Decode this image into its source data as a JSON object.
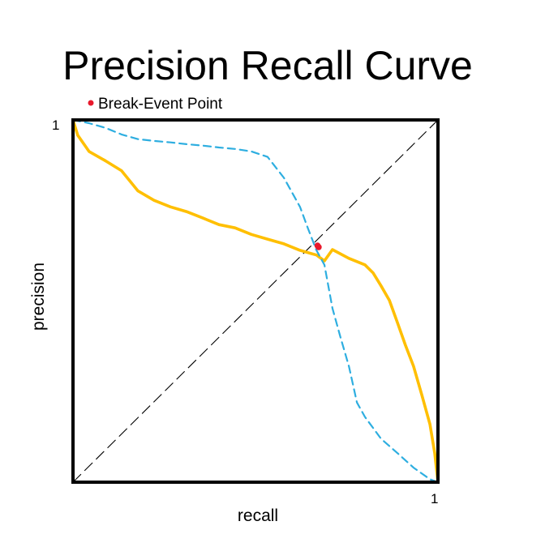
{
  "chart_data": {
    "type": "line",
    "title": "Precision Recall Curve",
    "xlabel": "recall",
    "ylabel": "precision",
    "xlim": [
      0,
      1
    ],
    "ylim": [
      0,
      1
    ],
    "x_tick_label": "1",
    "y_tick_label": "1",
    "grid": false,
    "legend": {
      "position": "top-left",
      "entries": [
        {
          "label": "Break-Event Point",
          "marker": "dot",
          "color": "#e8192c"
        }
      ]
    },
    "series": [
      {
        "color": "#ffbf00",
        "style": "solid",
        "x": [
          0.0,
          0.013,
          0.044,
          0.089,
          0.133,
          0.178,
          0.222,
          0.267,
          0.311,
          0.356,
          0.4,
          0.444,
          0.489,
          0.533,
          0.578,
          0.622,
          0.667,
          0.689,
          0.711,
          0.756,
          0.8,
          0.822,
          0.844,
          0.867,
          0.889,
          0.911,
          0.933,
          0.956,
          0.978,
          0.991,
          1.0
        ],
        "y": [
          1.0,
          0.958,
          0.913,
          0.887,
          0.86,
          0.804,
          0.778,
          0.76,
          0.747,
          0.729,
          0.711,
          0.702,
          0.684,
          0.671,
          0.658,
          0.64,
          0.627,
          0.611,
          0.642,
          0.618,
          0.6,
          0.578,
          0.542,
          0.502,
          0.44,
          0.378,
          0.32,
          0.24,
          0.16,
          0.08,
          0.0
        ]
      },
      {
        "color": "#2eaee0",
        "style": "dashed",
        "x": [
          0.0,
          0.044,
          0.089,
          0.133,
          0.178,
          0.222,
          0.267,
          0.311,
          0.356,
          0.4,
          0.444,
          0.489,
          0.533,
          0.578,
          0.622,
          0.644,
          0.667,
          0.689,
          0.711,
          0.733,
          0.756,
          0.778,
          0.8,
          0.844,
          0.889,
          0.933,
          0.978,
          1.0
        ],
        "y": [
          1.0,
          0.991,
          0.978,
          0.96,
          0.947,
          0.942,
          0.938,
          0.933,
          0.929,
          0.924,
          0.92,
          0.913,
          0.898,
          0.84,
          0.76,
          0.7,
          0.64,
          0.6,
          0.48,
          0.4,
          0.32,
          0.22,
          0.18,
          0.12,
          0.08,
          0.04,
          0.008,
          0.0
        ]
      }
    ],
    "reference_line": {
      "from": [
        0,
        0
      ],
      "to": [
        1,
        1
      ],
      "color": "#000000",
      "style": "dashed"
    },
    "break_even_points": [
      {
        "x": 0.673,
        "y": 0.649,
        "color": "#e8192c"
      },
      {
        "x": 0.67,
        "y": 0.653,
        "color": "#e8192c"
      }
    ]
  }
}
